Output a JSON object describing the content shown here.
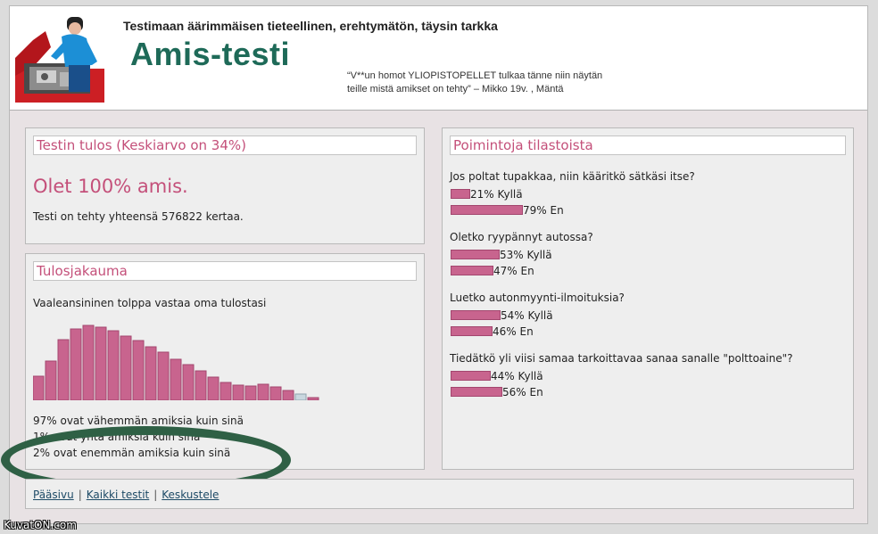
{
  "header": {
    "tagline": "Testimaan äärimmäisen tieteellinen, erehtymätön, täysin tarkka",
    "title": "Amis-testi",
    "quote_line1": "“V**un homot YLIOPISTOPELLET tulkaa tänne niin näytän",
    "quote_line2": "teille mistä amikset on tehty” – Mikko 19v. , Mäntä",
    "logo_icon": "mechanic-car-engine-icon"
  },
  "result": {
    "heading": "Testin tulos (Keskiarvo on 34%)",
    "text": "Olet 100% amis.",
    "count_text": "Testi on tehty yhteensä 576822 kertaa."
  },
  "distribution": {
    "heading": "Tulosjakauma",
    "note": "Vaaleansininen tolppa vastaa oma tulostasi",
    "bar_color": "#c8648e",
    "highlight_color": "#c9d7df",
    "stats": [
      "97% ovat vähemmän amiksia kuin sinä",
      "1% ovat yhtä amiksia kuin sinä",
      "2% ovat enemmän amiksia kuin sinä"
    ]
  },
  "chart_data": {
    "type": "bar",
    "values": [
      27,
      44,
      68,
      80,
      84,
      82,
      78,
      72,
      67,
      60,
      54,
      46,
      40,
      33,
      26,
      20,
      17,
      16,
      18,
      15,
      11,
      7,
      3
    ],
    "highlight_index": 21,
    "title": "",
    "xlabel": "",
    "ylabel": ""
  },
  "stats": {
    "heading": "Poimintoja tilastoista",
    "questions": [
      {
        "text": "Jos poltat tupakkaa, niin kääritkö sätkäsi itse?",
        "answers": [
          {
            "label": "21% Kyllä",
            "pct": 21
          },
          {
            "label": "79% En",
            "pct": 79
          }
        ]
      },
      {
        "text": "Oletko ryypännyt autossa?",
        "answers": [
          {
            "label": "53% Kyllä",
            "pct": 53
          },
          {
            "label": "47% En",
            "pct": 47
          }
        ]
      },
      {
        "text": "Luetko autonmyynti-ilmoituksia?",
        "answers": [
          {
            "label": "54% Kyllä",
            "pct": 54
          },
          {
            "label": "46% En",
            "pct": 46
          }
        ]
      },
      {
        "text": "Tiedätkö yli viisi samaa tarkoittavaa sanaa sanalle \"polttoaine\"?",
        "answers": [
          {
            "label": "44% Kyllä",
            "pct": 44
          },
          {
            "label": "56% En",
            "pct": 56
          }
        ]
      }
    ]
  },
  "footer": {
    "links": [
      "Pääsivu",
      "Kaikki testit",
      "Keskustele"
    ],
    "separator": "|"
  },
  "watermark": "KuvatON.com"
}
